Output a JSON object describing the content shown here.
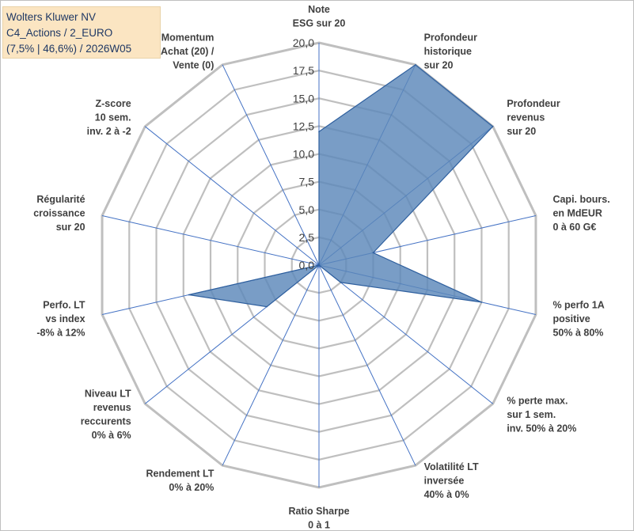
{
  "title": {
    "line1": "Wolters Kluwer NV",
    "line2": "C4_Actions / 2_EURO",
    "line3": "(7,5% | 46,6%) / 2026W05"
  },
  "colors": {
    "fill": "#5b87ba",
    "stroke": "#2e5f9e",
    "grid": "#bfbfbf",
    "spoke": "#4472c4"
  },
  "chart_data": {
    "type": "radar",
    "rmin": 0,
    "rmax": 20,
    "grid_step": 2.5,
    "tick_labels": [
      "0,0",
      "2,5",
      "5,0",
      "7,5",
      "10,0",
      "12,5",
      "15,0",
      "17,5",
      "20,0"
    ],
    "axes": [
      {
        "label": [
          "Note",
          "ESG sur 20"
        ],
        "value": 12
      },
      {
        "label": [
          "Profondeur",
          "historique",
          "sur 20"
        ],
        "value": 20
      },
      {
        "label": [
          "Profondeur",
          "revenus",
          "sur 20"
        ],
        "value": 20
      },
      {
        "label": [
          "Capi. bours.",
          "en MdEUR",
          "0 à 60 G€"
        ],
        "value": 5
      },
      {
        "label": [
          "% perfo 1A",
          "positive",
          "50% à 80%"
        ],
        "value": 15
      },
      {
        "label": [
          "% perte max.",
          "sur 1 sem.",
          "inv. 50% à 20%"
        ],
        "value": 2.5
      },
      {
        "label": [
          "Volatilité LT",
          "inversée",
          "40% à 0%"
        ],
        "value": 0
      },
      {
        "label": [
          "Ratio Sharpe",
          "0 à 1"
        ],
        "value": 0
      },
      {
        "label": [
          "Rendement LT",
          "0% à 20%"
        ],
        "value": 0
      },
      {
        "label": [
          "Niveau LT",
          "revenus",
          "reccurents",
          "0% à 6%"
        ],
        "value": 6
      },
      {
        "label": [
          "Perfo. LT",
          "vs index",
          "-8% à 12%"
        ],
        "value": 12
      },
      {
        "label": [
          "Régularité",
          "croissance",
          "sur 20"
        ],
        "value": 0
      },
      {
        "label": [
          "Z-score",
          "10 sem.",
          "inv. 2 à -2"
        ],
        "value": 0
      },
      {
        "label": [
          "Momentum",
          "Achat (20) /",
          "Vente (0)"
        ],
        "value": 0
      }
    ]
  }
}
